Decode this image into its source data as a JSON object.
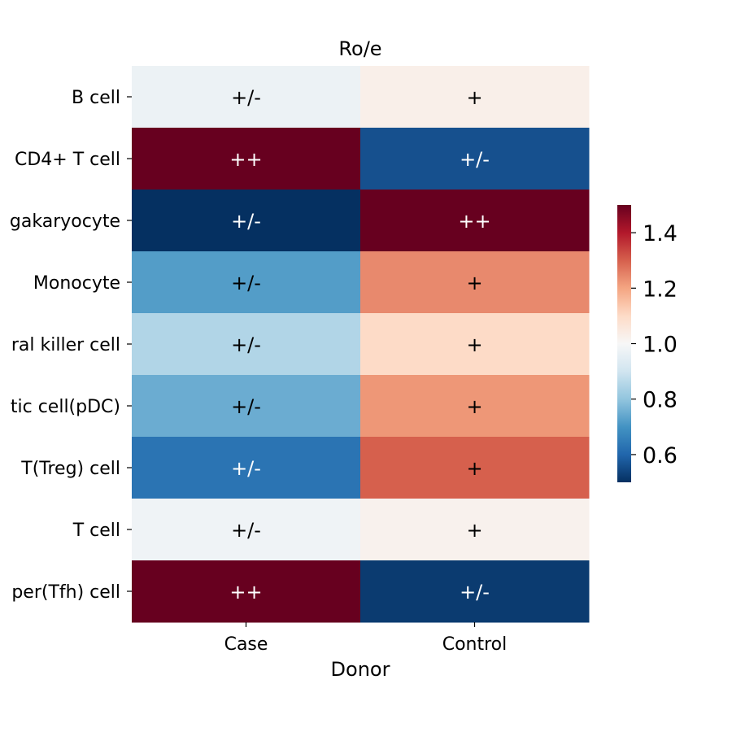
{
  "chart_data": {
    "type": "heatmap",
    "title": "Ro/e",
    "xlabel": "Donor",
    "ylabel": "",
    "x_categories": [
      "Case",
      "Control"
    ],
    "y_categories": [
      "B cell",
      "CD4+ T cell",
      "Megakaryocyte",
      "Monocyte",
      "Natural killer cell",
      "Plasmacytoid dendritic cell(pDC)",
      "Regulatory T(Treg) cell",
      "T cell",
      "T follicular helper(Tfh) cell"
    ],
    "y_tick_labels_visible": [
      "B cell",
      "CD4+ T cell",
      "gakaryocyte",
      "Monocyte",
      "ral killer cell",
      "tic cell(pDC)",
      "T(Treg) cell",
      "T cell",
      "per(Tfh) cell"
    ],
    "values": [
      [
        0.97,
        1.03
      ],
      [
        1.55,
        0.56
      ],
      [
        0.45,
        1.55
      ],
      [
        0.72,
        1.24
      ],
      [
        0.85,
        1.1
      ],
      [
        0.75,
        1.22
      ],
      [
        0.63,
        1.3
      ],
      [
        0.98,
        1.02
      ],
      [
        1.55,
        0.52
      ]
    ],
    "annotations": [
      [
        "+/-",
        "+"
      ],
      [
        "++",
        "+/-"
      ],
      [
        "+/-",
        "++"
      ],
      [
        "+/-",
        "+"
      ],
      [
        "+/-",
        "+"
      ],
      [
        "+/-",
        "+"
      ],
      [
        "+/-",
        "+"
      ],
      [
        "+/-",
        "+"
      ],
      [
        "++",
        "+/-"
      ]
    ],
    "colormap": "RdBu_r",
    "vmin": 0.5,
    "vmax": 1.5,
    "colorbar_ticks": [
      0.6,
      0.8,
      1.0,
      1.2,
      1.4
    ],
    "colorbar_tick_labels": [
      "0.6",
      "0.8",
      "1.0",
      "1.2",
      "1.4"
    ],
    "colorbar_placement": "right",
    "grid": false
  }
}
